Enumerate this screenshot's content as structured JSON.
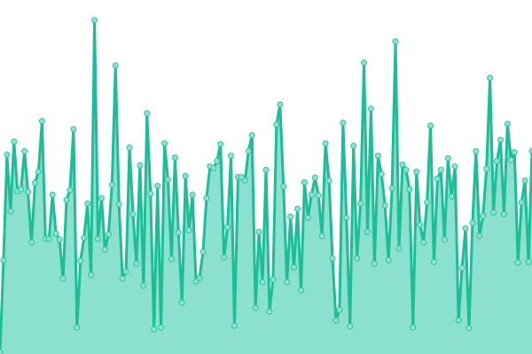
{
  "chart_data": {
    "type": "area",
    "title": "",
    "xlabel": "",
    "ylabel": "",
    "ylim": [
      0,
      100
    ],
    "grid": false,
    "legend": "none",
    "markers": true,
    "colors": {
      "line": "#1dbd98",
      "fill": "#8ce0cf",
      "marker_fill": "#8fe2cf",
      "marker_stroke": "#2cc4a0"
    },
    "values": [
      0.5,
      26.5,
      56.3,
      40.3,
      60,
      46,
      46.5,
      57.3,
      45.8,
      31.5,
      48.3,
      51.5,
      65.8,
      32.5,
      32.5,
      45,
      34,
      32.3,
      21.3,
      43.5,
      46.3,
      63.5,
      7.5,
      26.3,
      32.8,
      42.5,
      22.3,
      94.3,
      32.5,
      44,
      29.5,
      33.8,
      47.8,
      81.5,
      42.3,
      21.3,
      23.3,
      58.3,
      39.5,
      25.5,
      53.3,
      19.3,
      68,
      45.3,
      7,
      47.5,
      7.5,
      59.5,
      49.3,
      26.8,
      55.5,
      34.3,
      14.5,
      50.3,
      35,
      45,
      20.5,
      21.5,
      28.8,
      44,
      53,
      52.5,
      54.5,
      59.3,
      27.3,
      35.8,
      56,
      8,
      50,
      50,
      49,
      57.3,
      61.8,
      13,
      34.5,
      20.3,
      52,
      12,
      21,
      64.8,
      70.5,
      47.3,
      20.3,
      38.8,
      24.5,
      41,
      18,
      48.5,
      38.5,
      45,
      49.8,
      44.8,
      33.3,
      59.5,
      49,
      27,
      9.5,
      12.5,
      65.3,
      38.5,
      7.8,
      58.8,
      27,
      42.5,
      82.3,
      34.5,
      69.3,
      25.5,
      56,
      50.8,
      42,
      26.5,
      46.8,
      88.3,
      29.8,
      53.5,
      52,
      46.5,
      7.5,
      51.5,
      36.5,
      31.5,
      42.8,
      64.5,
      26,
      49.5,
      52,
      32.3,
      55.3,
      44.5,
      53,
      9.5,
      24.3,
      35.5,
      7.3,
      37,
      57.3,
      33.3,
      39,
      52.3,
      78,
      40,
      54.5,
      60.5,
      39.5,
      65,
      54.8,
      57,
      25.8,
      42.8,
      49,
      26,
      57.3
    ]
  }
}
